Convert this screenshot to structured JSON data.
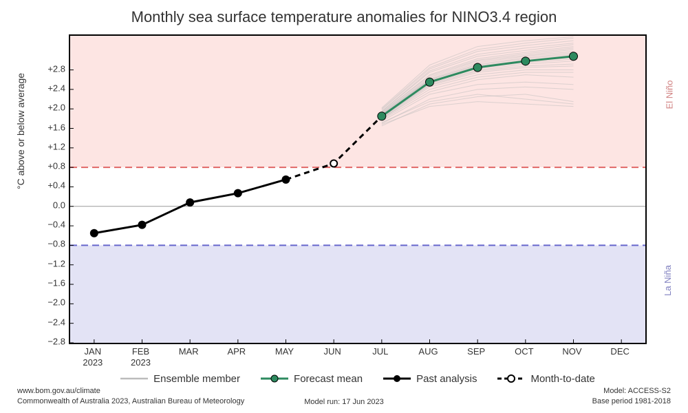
{
  "title": "Monthly sea surface temperature anomalies for NINO3.4 region",
  "ylabel": "°C above or below average",
  "zone_labels": {
    "elnino": "El Niño",
    "lanina": "La Niña"
  },
  "chart": {
    "type": "line",
    "background_color": "#ffffff",
    "elnino_band_color": "#fde5e3",
    "lanina_band_color": "#e3e3f5",
    "elnino_threshold": 0.8,
    "lanina_threshold": -0.8,
    "elnino_dash_color": "#e06666",
    "lanina_dash_color": "#6666cc",
    "zero_line_color": "#999999",
    "border_color": "#000000",
    "ylim": [
      -2.8,
      3.5
    ],
    "yticks": [
      -2.8,
      -2.4,
      -2.0,
      -1.6,
      -1.2,
      -0.8,
      -0.4,
      0.0,
      0.4,
      0.8,
      1.2,
      1.6,
      2.0,
      2.4,
      2.8
    ],
    "ytick_labels": [
      "−2.8",
      "−2.4",
      "−2.0",
      "−1.6",
      "−1.2",
      "−0.8",
      "−0.4",
      "0.0",
      "+0.4",
      "+0.8",
      "+1.2",
      "+1.6",
      "+2.0",
      "+2.4",
      "+2.8"
    ],
    "xticks": [
      0,
      1,
      2,
      3,
      4,
      5,
      6,
      7,
      8,
      9,
      10,
      11
    ],
    "xtick_labels": [
      "JAN\n2023",
      "FEB\n2023",
      "MAR",
      "APR",
      "MAY",
      "JUN",
      "JUL",
      "AUG",
      "SEP",
      "OCT",
      "NOV",
      "DEC"
    ],
    "xlim": [
      -0.5,
      11.5
    ],
    "past_analysis": {
      "x": [
        0,
        1,
        2,
        3,
        4
      ],
      "y": [
        -0.55,
        -0.38,
        0.08,
        0.27,
        0.55
      ],
      "color": "#000000",
      "line_width": 3,
      "marker_size": 6
    },
    "month_to_date": {
      "x": [
        4,
        5,
        6
      ],
      "y": [
        0.55,
        0.88,
        1.85
      ],
      "color": "#000000",
      "line_width": 3,
      "dash": "8,6",
      "marker_x": 5,
      "marker_y": 0.88,
      "marker_size": 5
    },
    "forecast_mean": {
      "x": [
        6,
        7,
        8,
        9,
        10
      ],
      "y": [
        1.85,
        2.55,
        2.85,
        2.98,
        3.08
      ],
      "color": "#2d8a5f",
      "line_width": 3,
      "marker_size": 6
    },
    "ensemble": {
      "color": "#bbbbbb",
      "line_width": 1,
      "opacity": 0.5,
      "members": [
        {
          "x": [
            6,
            7,
            8,
            9,
            10
          ],
          "y": [
            1.65,
            2.1,
            2.25,
            2.3,
            2.15
          ]
        },
        {
          "x": [
            6,
            7,
            8,
            9,
            10
          ],
          "y": [
            1.7,
            2.2,
            2.4,
            2.45,
            2.4
          ]
        },
        {
          "x": [
            6,
            7,
            8,
            9,
            10
          ],
          "y": [
            1.75,
            2.3,
            2.5,
            2.55,
            2.5
          ]
        },
        {
          "x": [
            6,
            7,
            8,
            9,
            10
          ],
          "y": [
            1.78,
            2.35,
            2.6,
            2.7,
            2.65
          ]
        },
        {
          "x": [
            6,
            7,
            8,
            9,
            10
          ],
          "y": [
            1.8,
            2.4,
            2.65,
            2.75,
            2.75
          ]
        },
        {
          "x": [
            6,
            7,
            8,
            9,
            10
          ],
          "y": [
            1.8,
            2.45,
            2.7,
            2.8,
            2.8
          ]
        },
        {
          "x": [
            6,
            7,
            8,
            9,
            10
          ],
          "y": [
            1.82,
            2.48,
            2.75,
            2.85,
            2.88
          ]
        },
        {
          "x": [
            6,
            7,
            8,
            9,
            10
          ],
          "y": [
            1.83,
            2.5,
            2.78,
            2.88,
            2.92
          ]
        },
        {
          "x": [
            6,
            7,
            8,
            9,
            10
          ],
          "y": [
            1.85,
            2.52,
            2.8,
            2.92,
            2.98
          ]
        },
        {
          "x": [
            6,
            7,
            8,
            9,
            10
          ],
          "y": [
            1.85,
            2.55,
            2.83,
            2.95,
            3.02
          ]
        },
        {
          "x": [
            6,
            7,
            8,
            9,
            10
          ],
          "y": [
            1.86,
            2.55,
            2.85,
            2.98,
            3.05
          ]
        },
        {
          "x": [
            6,
            7,
            8,
            9,
            10
          ],
          "y": [
            1.87,
            2.58,
            2.88,
            3.0,
            3.1
          ]
        },
        {
          "x": [
            6,
            7,
            8,
            9,
            10
          ],
          "y": [
            1.88,
            2.6,
            2.9,
            3.03,
            3.12
          ]
        },
        {
          "x": [
            6,
            7,
            8,
            9,
            10
          ],
          "y": [
            1.88,
            2.6,
            2.92,
            3.05,
            3.15
          ]
        },
        {
          "x": [
            6,
            7,
            8,
            9,
            10
          ],
          "y": [
            1.9,
            2.62,
            2.95,
            3.08,
            3.18
          ]
        },
        {
          "x": [
            6,
            7,
            8,
            9,
            10
          ],
          "y": [
            1.9,
            2.65,
            2.98,
            3.1,
            3.22
          ]
        },
        {
          "x": [
            6,
            7,
            8,
            9,
            10
          ],
          "y": [
            1.92,
            2.68,
            3.0,
            3.13,
            3.25
          ]
        },
        {
          "x": [
            6,
            7,
            8,
            9,
            10
          ],
          "y": [
            1.93,
            2.7,
            3.03,
            3.16,
            3.28
          ]
        },
        {
          "x": [
            6,
            7,
            8,
            9,
            10
          ],
          "y": [
            1.95,
            2.75,
            3.08,
            3.2,
            3.32
          ]
        },
        {
          "x": [
            6,
            7,
            8,
            9,
            10
          ],
          "y": [
            1.95,
            2.78,
            3.12,
            3.25,
            3.35
          ]
        },
        {
          "x": [
            6,
            7,
            8,
            9,
            10
          ],
          "y": [
            1.98,
            2.82,
            3.18,
            3.3,
            3.4
          ]
        },
        {
          "x": [
            6,
            7,
            8,
            9,
            10
          ],
          "y": [
            2.0,
            2.85,
            3.22,
            3.35,
            3.45
          ]
        },
        {
          "x": [
            6,
            7,
            8,
            9,
            10
          ],
          "y": [
            2.02,
            2.9,
            3.28,
            3.4,
            3.48
          ]
        },
        {
          "x": [
            6,
            7,
            8,
            9,
            10
          ],
          "y": [
            1.72,
            2.15,
            2.3,
            2.2,
            2.1
          ]
        },
        {
          "x": [
            6,
            7,
            8,
            9,
            10
          ],
          "y": [
            1.68,
            2.05,
            2.15,
            2.1,
            2.05
          ]
        }
      ]
    }
  },
  "legend": {
    "ensemble": "Ensemble member",
    "forecast": "Forecast mean",
    "past": "Past analysis",
    "mtd": "Month-to-date"
  },
  "footer": {
    "url": "www.bom.gov.au/climate",
    "copyright": "Commonwealth of Australia 2023, Australian Bureau of Meteorology",
    "model_run": "Model run: 17 Jun 2023",
    "model": "Model: ACCESS-S2",
    "base_period": "Base period 1981-2018"
  }
}
